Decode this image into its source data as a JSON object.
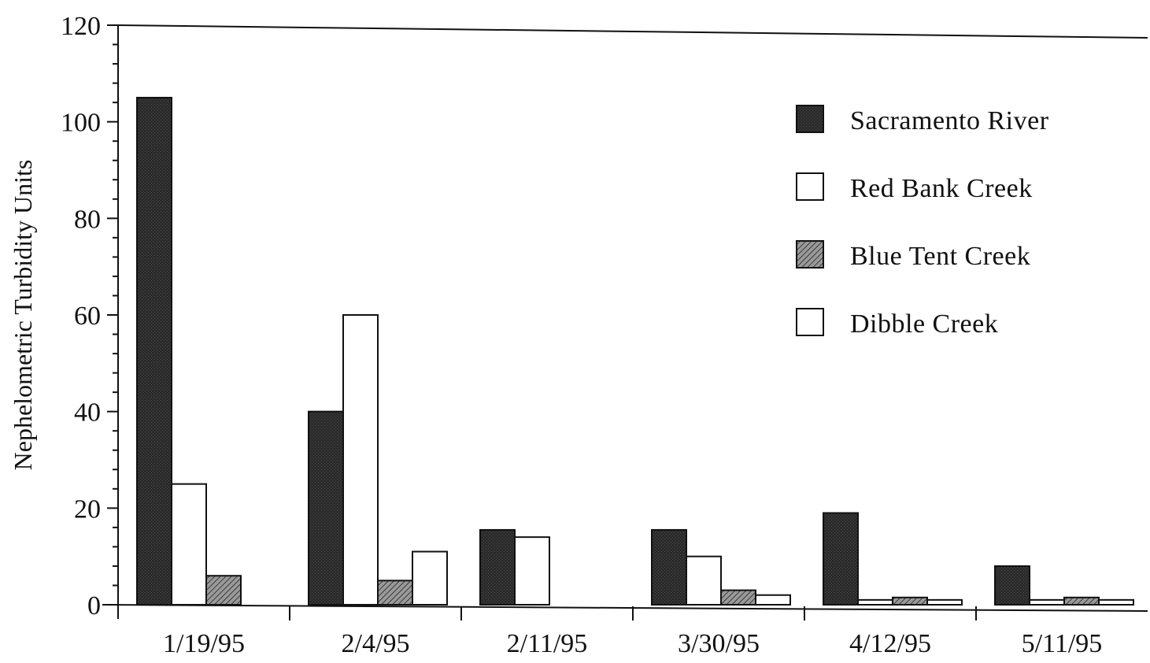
{
  "chart_data": {
    "type": "bar",
    "title": "",
    "xlabel": "",
    "ylabel": "Nephelometric Turbidity Units",
    "ylim": [
      0,
      120
    ],
    "yticks": [
      0,
      20,
      40,
      60,
      80,
      100,
      120
    ],
    "grid": false,
    "legend_position": "top-right",
    "categories": [
      "1/19/95",
      "2/4/95",
      "2/11/95",
      "3/30/95",
      "4/12/95",
      "5/11/95"
    ],
    "series": [
      {
        "name": "Sacramento River",
        "color": "#2a2a2a",
        "values": [
          105,
          40,
          15.5,
          15.5,
          19,
          8
        ]
      },
      {
        "name": "Red Bank Creek",
        "color": "#ffffff",
        "values": [
          25,
          60,
          14,
          10,
          1,
          1
        ]
      },
      {
        "name": "Blue Tent Creek",
        "color": "#8a8a8a",
        "values": [
          6,
          5,
          0,
          3,
          1.5,
          1.5
        ]
      },
      {
        "name": "Dibble Creek",
        "color": "#ffffff",
        "values": [
          0,
          11,
          0,
          2,
          1,
          1
        ]
      }
    ]
  }
}
